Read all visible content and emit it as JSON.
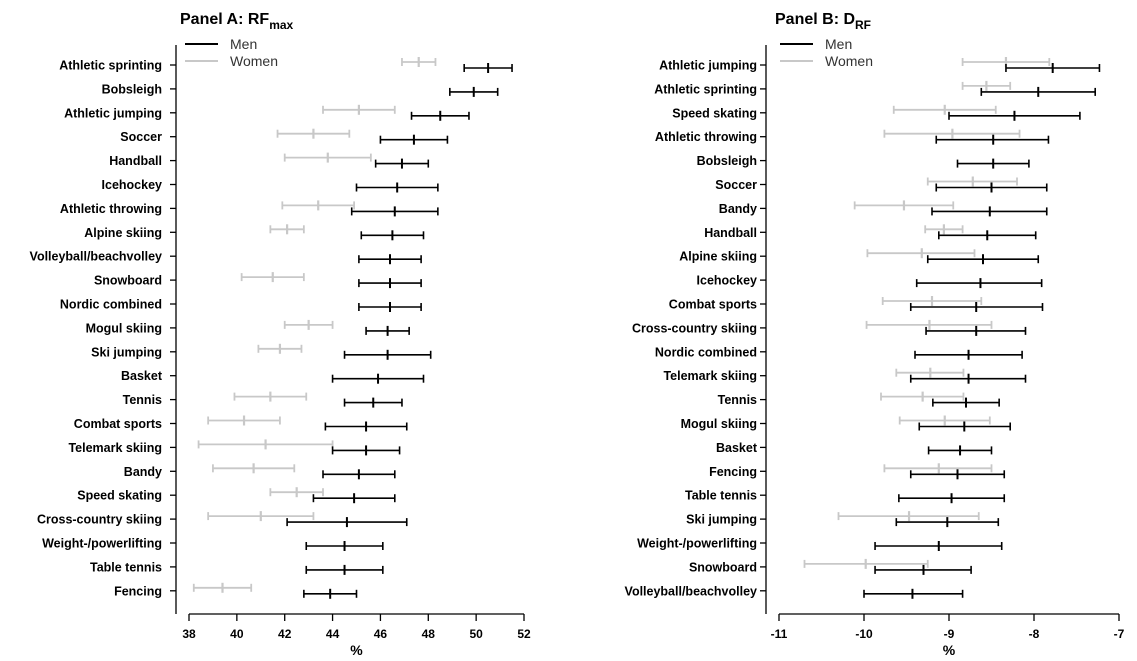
{
  "colors": {
    "men": "#000000",
    "women": "#c8c8c8",
    "axis": "#000000"
  },
  "chart_data": [
    {
      "type": "errorbar",
      "panel": "A",
      "title": "Panel A: RF",
      "title_sub": "max",
      "xlabel": "%",
      "xlim": [
        38,
        52
      ],
      "xticks": [
        38,
        40,
        42,
        44,
        46,
        48,
        50,
        52
      ],
      "legend": {
        "placement": "top-left",
        "entries": [
          "Men",
          "Women"
        ]
      },
      "categories": [
        "Athletic sprinting",
        "Bobsleigh",
        "Athletic jumping",
        "Soccer",
        "Handball",
        "Icehockey",
        "Athletic throwing",
        "Alpine skiing",
        "Volleyball/beachvolley",
        "Snowboard",
        "Nordic combined",
        "Mogul skiing",
        "Ski jumping",
        "Basket",
        "Tennis",
        "Combat sports",
        "Telemark skiing",
        "Bandy",
        "Speed skating",
        "Cross-country skiing",
        "Weight-/powerlifting",
        "Table tennis",
        "Fencing"
      ],
      "series": [
        {
          "name": "Men",
          "color": "#000000",
          "data": [
            {
              "mean": 50.5,
              "lo": 49.5,
              "hi": 51.5
            },
            {
              "mean": 49.9,
              "lo": 48.9,
              "hi": 50.9
            },
            {
              "mean": 48.5,
              "lo": 47.3,
              "hi": 49.7
            },
            {
              "mean": 47.4,
              "lo": 46.0,
              "hi": 48.8
            },
            {
              "mean": 46.9,
              "lo": 45.8,
              "hi": 48.0
            },
            {
              "mean": 46.7,
              "lo": 45.0,
              "hi": 48.4
            },
            {
              "mean": 46.6,
              "lo": 44.8,
              "hi": 48.4
            },
            {
              "mean": 46.5,
              "lo": 45.2,
              "hi": 47.8
            },
            {
              "mean": 46.4,
              "lo": 45.1,
              "hi": 47.7
            },
            {
              "mean": 46.4,
              "lo": 45.1,
              "hi": 47.7
            },
            {
              "mean": 46.4,
              "lo": 45.1,
              "hi": 47.7
            },
            {
              "mean": 46.3,
              "lo": 45.4,
              "hi": 47.2
            },
            {
              "mean": 46.3,
              "lo": 44.5,
              "hi": 48.1
            },
            {
              "mean": 45.9,
              "lo": 44.0,
              "hi": 47.8
            },
            {
              "mean": 45.7,
              "lo": 44.5,
              "hi": 46.9
            },
            {
              "mean": 45.4,
              "lo": 43.7,
              "hi": 47.1
            },
            {
              "mean": 45.4,
              "lo": 44.0,
              "hi": 46.8
            },
            {
              "mean": 45.1,
              "lo": 43.6,
              "hi": 46.6
            },
            {
              "mean": 44.9,
              "lo": 43.2,
              "hi": 46.6
            },
            {
              "mean": 44.6,
              "lo": 42.1,
              "hi": 47.1
            },
            {
              "mean": 44.5,
              "lo": 42.9,
              "hi": 46.1
            },
            {
              "mean": 44.5,
              "lo": 42.9,
              "hi": 46.1
            },
            {
              "mean": 43.9,
              "lo": 42.8,
              "hi": 45.0
            }
          ]
        },
        {
          "name": "Women",
          "color": "#c8c8c8",
          "data": [
            {
              "mean": 47.6,
              "lo": 46.9,
              "hi": 48.3
            },
            null,
            {
              "mean": 45.1,
              "lo": 43.6,
              "hi": 46.6
            },
            {
              "mean": 43.2,
              "lo": 41.7,
              "hi": 44.7
            },
            {
              "mean": 43.8,
              "lo": 42.0,
              "hi": 45.6
            },
            null,
            {
              "mean": 43.4,
              "lo": 41.9,
              "hi": 44.9
            },
            {
              "mean": 42.1,
              "lo": 41.4,
              "hi": 42.8
            },
            null,
            {
              "mean": 41.5,
              "lo": 40.2,
              "hi": 42.8
            },
            null,
            {
              "mean": 43.0,
              "lo": 42.0,
              "hi": 44.0
            },
            {
              "mean": 41.8,
              "lo": 40.9,
              "hi": 42.7
            },
            null,
            {
              "mean": 41.4,
              "lo": 39.9,
              "hi": 42.9
            },
            {
              "mean": 40.3,
              "lo": 38.8,
              "hi": 41.8
            },
            {
              "mean": 41.2,
              "lo": 38.4,
              "hi": 44.0
            },
            {
              "mean": 40.7,
              "lo": 39.0,
              "hi": 42.4
            },
            {
              "mean": 42.5,
              "lo": 41.4,
              "hi": 43.6
            },
            {
              "mean": 41.0,
              "lo": 38.8,
              "hi": 43.2
            },
            null,
            null,
            {
              "mean": 39.4,
              "lo": 38.2,
              "hi": 40.6
            }
          ]
        }
      ]
    },
    {
      "type": "errorbar",
      "panel": "B",
      "title": "Panel B: D",
      "title_sub": "RF",
      "xlabel": "%",
      "xlim": [
        -11,
        -7
      ],
      "xticks": [
        -11,
        -10,
        -9,
        -8,
        -7
      ],
      "legend": {
        "placement": "top-left",
        "entries": [
          "Men",
          "Women"
        ]
      },
      "categories": [
        "Athletic jumping",
        "Athletic sprinting",
        "Speed skating",
        "Athletic throwing",
        "Bobsleigh",
        "Soccer",
        "Bandy",
        "Handball",
        "Alpine skiing",
        "Icehockey",
        "Combat sports",
        "Cross-country skiing",
        "Nordic combined",
        "Telemark skiing",
        "Tennis",
        "Mogul skiing",
        "Basket",
        "Fencing",
        "Table tennis",
        "Ski jumping",
        "Weight-/powerlifting",
        "Snowboard",
        "Volleyball/beachvolley"
      ],
      "series": [
        {
          "name": "Men",
          "color": "#000000",
          "data": [
            {
              "mean": -7.78,
              "lo": -8.33,
              "hi": -7.23
            },
            {
              "mean": -7.95,
              "lo": -8.62,
              "hi": -7.28
            },
            {
              "mean": -8.23,
              "lo": -9.0,
              "hi": -7.46
            },
            {
              "mean": -8.48,
              "lo": -9.15,
              "hi": -7.83
            },
            {
              "mean": -8.48,
              "lo": -8.9,
              "hi": -8.06
            },
            {
              "mean": -8.5,
              "lo": -9.15,
              "hi": -7.85
            },
            {
              "mean": -8.52,
              "lo": -9.2,
              "hi": -7.85
            },
            {
              "mean": -8.55,
              "lo": -9.12,
              "hi": -7.98
            },
            {
              "mean": -8.6,
              "lo": -9.25,
              "hi": -7.95
            },
            {
              "mean": -8.63,
              "lo": -9.38,
              "hi": -7.91
            },
            {
              "mean": -8.68,
              "lo": -9.45,
              "hi": -7.9
            },
            {
              "mean": -8.68,
              "lo": -9.27,
              "hi": -8.1
            },
            {
              "mean": -8.77,
              "lo": -9.4,
              "hi": -8.14
            },
            {
              "mean": -8.77,
              "lo": -9.45,
              "hi": -8.1
            },
            {
              "mean": -8.8,
              "lo": -9.19,
              "hi": -8.41
            },
            {
              "mean": -8.82,
              "lo": -9.35,
              "hi": -8.28
            },
            {
              "mean": -8.87,
              "lo": -9.24,
              "hi": -8.5
            },
            {
              "mean": -8.9,
              "lo": -9.45,
              "hi": -8.35
            },
            {
              "mean": -8.97,
              "lo": -9.59,
              "hi": -8.35
            },
            {
              "mean": -9.02,
              "lo": -9.62,
              "hi": -8.42
            },
            {
              "mean": -9.12,
              "lo": -9.87,
              "hi": -8.38
            },
            {
              "mean": -9.3,
              "lo": -9.87,
              "hi": -8.74
            },
            {
              "mean": -9.43,
              "lo": -10.0,
              "hi": -8.84
            }
          ]
        },
        {
          "name": "Women",
          "color": "#c8c8c8",
          "data": [
            {
              "mean": -8.33,
              "lo": -8.84,
              "hi": -7.82
            },
            {
              "mean": -8.56,
              "lo": -8.84,
              "hi": -8.28
            },
            {
              "mean": -9.05,
              "lo": -9.65,
              "hi": -8.45
            },
            {
              "mean": -8.96,
              "lo": -9.76,
              "hi": -8.17
            },
            null,
            {
              "mean": -8.72,
              "lo": -9.25,
              "hi": -8.2
            },
            {
              "mean": -9.53,
              "lo": -10.11,
              "hi": -8.95
            },
            {
              "mean": -9.06,
              "lo": -9.28,
              "hi": -8.84
            },
            {
              "mean": -9.32,
              "lo": -9.96,
              "hi": -8.7
            },
            null,
            {
              "mean": -9.2,
              "lo": -9.78,
              "hi": -8.62
            },
            {
              "mean": -9.23,
              "lo": -9.97,
              "hi": -8.5
            },
            null,
            {
              "mean": -9.22,
              "lo": -9.62,
              "hi": -8.83
            },
            {
              "mean": -9.31,
              "lo": -9.8,
              "hi": -8.83
            },
            {
              "mean": -9.05,
              "lo": -9.58,
              "hi": -8.52
            },
            null,
            {
              "mean": -9.12,
              "lo": -9.76,
              "hi": -8.5
            },
            null,
            {
              "mean": -9.47,
              "lo": -10.3,
              "hi": -8.65
            },
            null,
            {
              "mean": -9.98,
              "lo": -10.7,
              "hi": -9.25
            },
            null
          ]
        }
      ]
    }
  ]
}
